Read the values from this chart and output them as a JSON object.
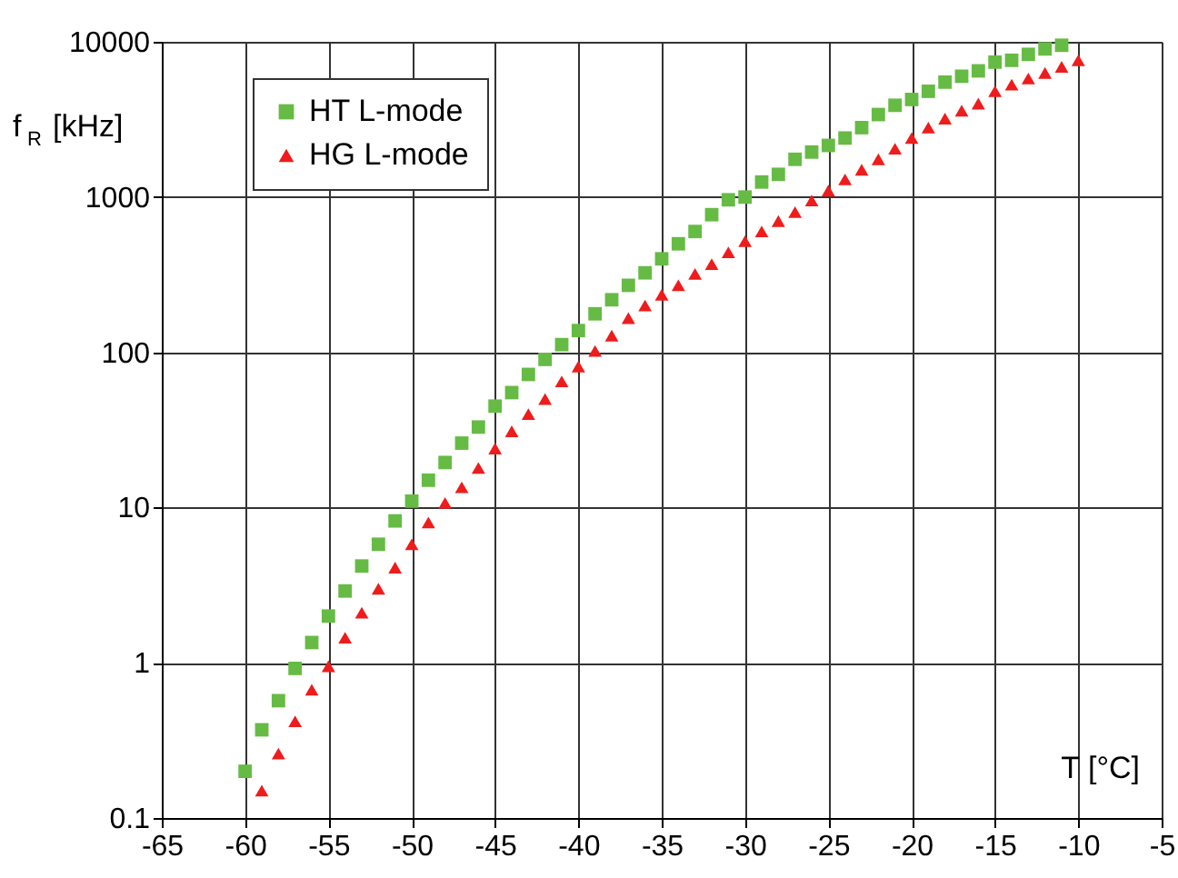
{
  "chart_data": {
    "type": "scatter",
    "xlabel": "T [°C]",
    "ylabel": "f$_{R}$ [kHz]",
    "xlim": [
      -65,
      -5
    ],
    "xticks": [
      -65,
      -60,
      -55,
      -50,
      -45,
      -40,
      -35,
      -30,
      -25,
      -20,
      -15,
      -10,
      -5
    ],
    "ylim": [
      0.1,
      10000
    ],
    "yticks": [
      0.1,
      1,
      10,
      100,
      1000,
      10000
    ],
    "log": "y",
    "grid": true,
    "legend": "top left",
    "series": [
      {
        "name": "HT L-mode",
        "color": "#66bb44",
        "marker": "square",
        "x": [
          -60,
          -59,
          -58,
          -57,
          -56,
          -55,
          -54,
          -53,
          -52,
          -51,
          -50,
          -49,
          -48,
          -47,
          -46,
          -45,
          -44,
          -43,
          -42,
          -41,
          -40,
          -39,
          -38,
          -37,
          -36,
          -35,
          -34,
          -33,
          -32,
          -31,
          -30,
          -29,
          -28,
          -27,
          -26,
          -25,
          -24,
          -23,
          -22,
          -21,
          -20,
          -19,
          -18,
          -17,
          -16,
          -15,
          -14,
          -13,
          -12,
          -11
        ],
        "values": [
          0.2,
          0.37,
          0.57,
          0.92,
          1.35,
          2.0,
          2.9,
          4.2,
          5.8,
          8.2,
          11,
          15,
          19.5,
          26,
          33,
          45,
          55,
          72,
          90,
          112,
          138,
          177,
          218,
          270,
          325,
          400,
          500,
          600,
          770,
          960,
          1000,
          1250,
          1400,
          1750,
          1950,
          2150,
          2400,
          2800,
          3400,
          3900,
          4250,
          4800,
          5500,
          6000,
          6500,
          7400,
          7600,
          8300,
          9000,
          9500
        ]
      },
      {
        "name": "HG L-mode",
        "color": "#ee1c1c",
        "marker": "triangle",
        "x": [
          -59,
          -58,
          -57,
          -56,
          -55,
          -54,
          -53,
          -52,
          -51,
          -50,
          -49,
          -48,
          -47,
          -46,
          -45,
          -44,
          -43,
          -42,
          -41,
          -40,
          -39,
          -38,
          -37,
          -36,
          -35,
          -34,
          -33,
          -32,
          -31,
          -30,
          -29,
          -28,
          -27,
          -26,
          -25,
          -24,
          -23,
          -22,
          -21,
          -20,
          -19,
          -18,
          -17,
          -16,
          -15,
          -14,
          -13,
          -12,
          -11,
          -10
        ],
        "values": [
          0.15,
          0.26,
          0.42,
          0.67,
          0.95,
          1.45,
          2.1,
          3.0,
          4.1,
          5.8,
          8.0,
          10.7,
          13.5,
          18,
          24,
          31,
          40,
          50,
          65,
          81,
          102,
          128,
          166,
          200,
          235,
          270,
          320,
          370,
          440,
          520,
          600,
          700,
          800,
          950,
          1100,
          1300,
          1500,
          1750,
          2050,
          2400,
          2800,
          3200,
          3600,
          4000,
          4800,
          5300,
          5800,
          6300,
          6900,
          7600
        ]
      }
    ]
  }
}
